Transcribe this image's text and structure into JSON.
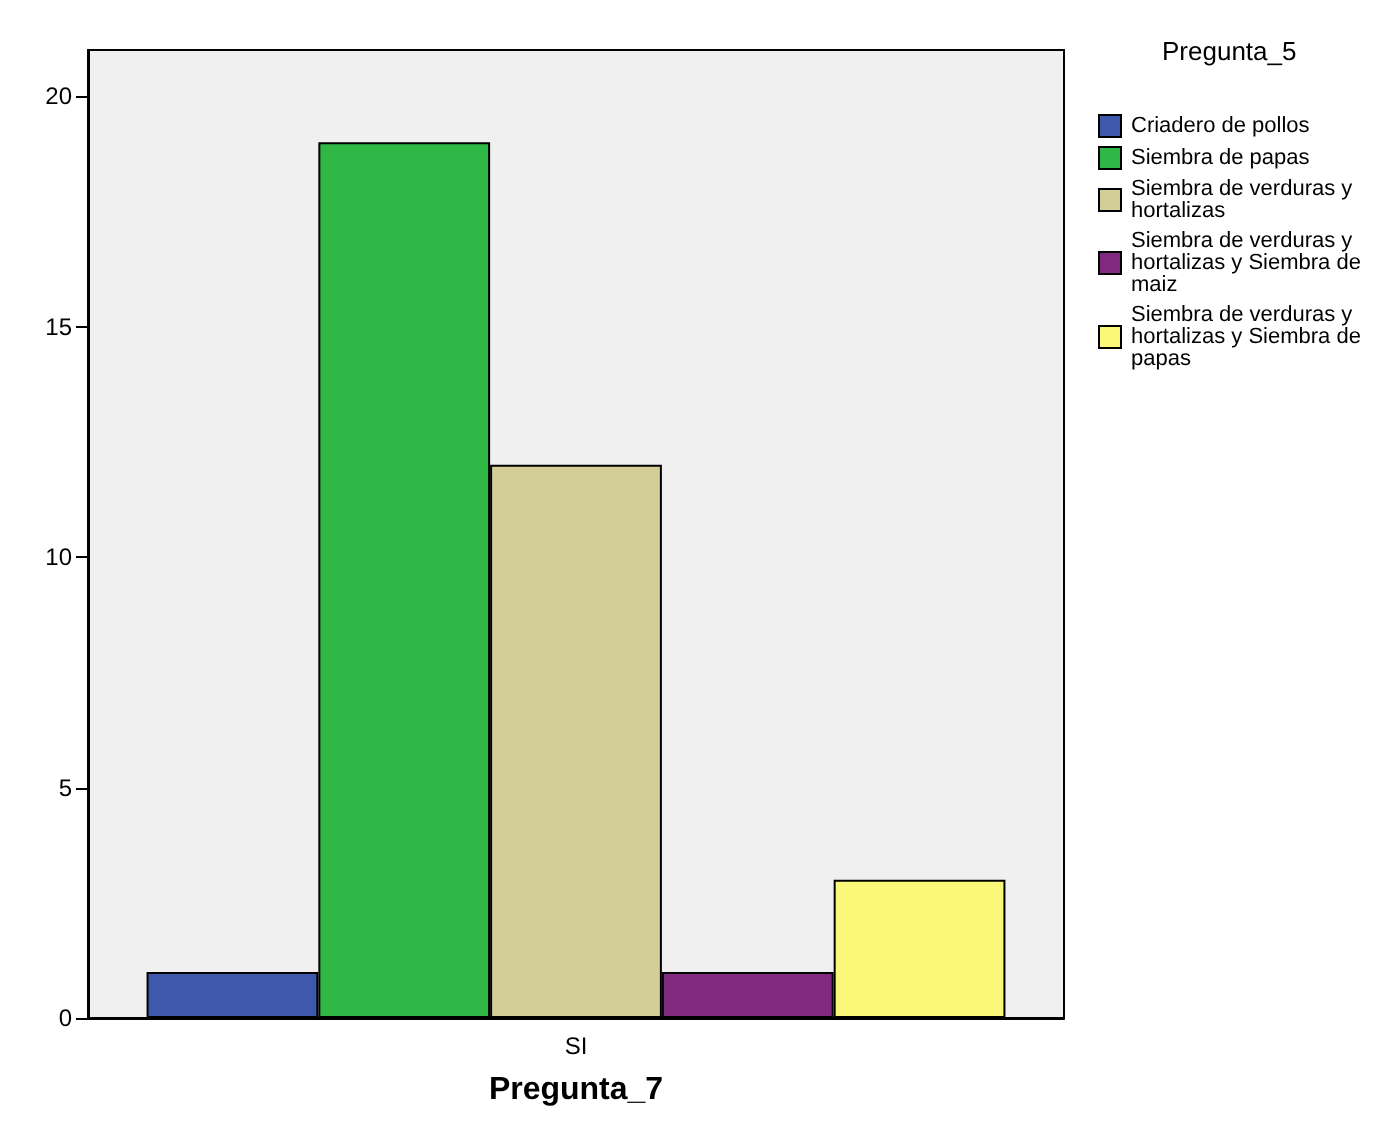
{
  "chart_data": {
    "type": "bar",
    "xlabel": "Pregunta_7",
    "legend_title": "Pregunta_5",
    "categories": [
      "SI"
    ],
    "series": [
      {
        "name": "Criadero de pollos",
        "color": "#3e58ac",
        "values": [
          1
        ]
      },
      {
        "name": "Siembra de papas",
        "color": "#30b847",
        "values": [
          19
        ]
      },
      {
        "name": "Siembra de verduras y hortalizas",
        "color": "#d3ce97",
        "values": [
          12
        ]
      },
      {
        "name": "Siembra de verduras y hortalizas y Siembra de maiz",
        "color": "#7f2a7e",
        "values": [
          1
        ]
      },
      {
        "name": "Siembra de verduras y hortalizas y Siembra de papas",
        "color": "#fbf778",
        "values": [
          3
        ]
      }
    ],
    "ylim": [
      0,
      21
    ],
    "yticks": [
      0,
      5,
      10,
      15,
      20
    ],
    "grid": false,
    "legend": "right"
  }
}
